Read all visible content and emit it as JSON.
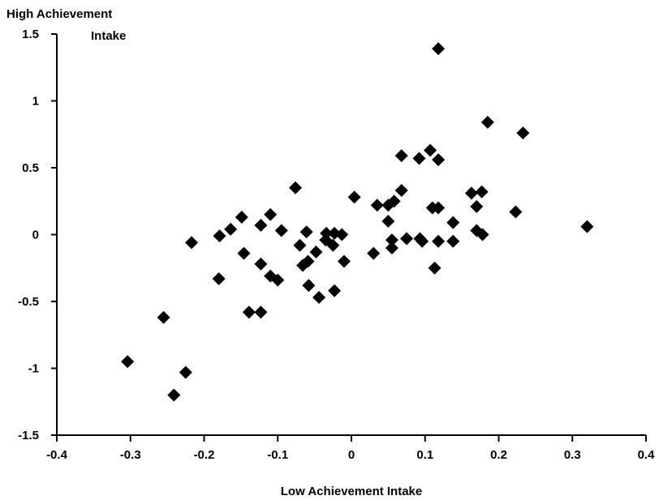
{
  "chart_data": {
    "type": "scatter",
    "ylabel_lines": [
      "High Achievement",
      "Intake"
    ],
    "xlabel": "Low Achievement Intake",
    "xlim": [
      -0.4,
      0.4
    ],
    "ylim": [
      -1.5,
      1.5
    ],
    "x_ticks": [
      -0.4,
      -0.3,
      -0.2,
      -0.1,
      0,
      0.1,
      0.2,
      0.3,
      0.4
    ],
    "x_tick_labels": [
      "-0.4",
      "-0.3",
      "-0.2",
      "-0.1",
      "0",
      "0.1",
      "0.2",
      "0.3",
      "0.4"
    ],
    "y_ticks": [
      1.5,
      1,
      0.5,
      0,
      -0.5,
      -1,
      -1.5
    ],
    "y_tick_labels": [
      "1.5",
      "1",
      "0.5",
      "0",
      "-0.5",
      "-1",
      "-1.5"
    ],
    "grid": false,
    "marker": "diamond",
    "marker_color": "#000000",
    "points": [
      {
        "x": -0.304,
        "y": -0.95
      },
      {
        "x": -0.255,
        "y": -0.62
      },
      {
        "x": -0.241,
        "y": -1.2
      },
      {
        "x": -0.225,
        "y": -1.03
      },
      {
        "x": -0.217,
        "y": -0.06
      },
      {
        "x": -0.179,
        "y": -0.01
      },
      {
        "x": -0.18,
        "y": -0.33
      },
      {
        "x": -0.164,
        "y": 0.04
      },
      {
        "x": -0.149,
        "y": 0.13
      },
      {
        "x": -0.146,
        "y": -0.14
      },
      {
        "x": -0.139,
        "y": -0.58
      },
      {
        "x": -0.123,
        "y": 0.07
      },
      {
        "x": -0.123,
        "y": -0.22
      },
      {
        "x": -0.123,
        "y": -0.58
      },
      {
        "x": -0.11,
        "y": 0.15
      },
      {
        "x": -0.11,
        "y": -0.31
      },
      {
        "x": -0.1,
        "y": -0.34
      },
      {
        "x": -0.095,
        "y": 0.03
      },
      {
        "x": -0.076,
        "y": 0.35
      },
      {
        "x": -0.07,
        "y": -0.08
      },
      {
        "x": -0.066,
        "y": -0.23
      },
      {
        "x": -0.061,
        "y": 0.02
      },
      {
        "x": -0.059,
        "y": -0.2
      },
      {
        "x": -0.058,
        "y": -0.38
      },
      {
        "x": -0.048,
        "y": -0.13
      },
      {
        "x": -0.044,
        "y": -0.47
      },
      {
        "x": -0.035,
        "y": -0.04
      },
      {
        "x": -0.034,
        "y": 0.01
      },
      {
        "x": -0.025,
        "y": -0.08
      },
      {
        "x": -0.023,
        "y": 0.01
      },
      {
        "x": -0.023,
        "y": -0.42
      },
      {
        "x": -0.013,
        "y": 0.0
      },
      {
        "x": -0.01,
        "y": -0.2
      },
      {
        "x": 0.004,
        "y": 0.28
      },
      {
        "x": 0.03,
        "y": -0.14
      },
      {
        "x": 0.035,
        "y": 0.22
      },
      {
        "x": 0.05,
        "y": 0.1
      },
      {
        "x": 0.05,
        "y": 0.22
      },
      {
        "x": 0.055,
        "y": -0.04
      },
      {
        "x": 0.058,
        "y": 0.25
      },
      {
        "x": 0.055,
        "y": -0.1
      },
      {
        "x": 0.068,
        "y": 0.33
      },
      {
        "x": 0.068,
        "y": 0.59
      },
      {
        "x": 0.075,
        "y": -0.03
      },
      {
        "x": 0.092,
        "y": 0.57
      },
      {
        "x": 0.093,
        "y": -0.03
      },
      {
        "x": 0.096,
        "y": -0.05
      },
      {
        "x": 0.107,
        "y": 0.63
      },
      {
        "x": 0.11,
        "y": 0.2
      },
      {
        "x": 0.113,
        "y": -0.25
      },
      {
        "x": 0.118,
        "y": 0.56
      },
      {
        "x": 0.118,
        "y": 1.39
      },
      {
        "x": 0.118,
        "y": 0.2
      },
      {
        "x": 0.118,
        "y": -0.05
      },
      {
        "x": 0.138,
        "y": 0.09
      },
      {
        "x": 0.138,
        "y": -0.05
      },
      {
        "x": 0.163,
        "y": 0.31
      },
      {
        "x": 0.17,
        "y": 0.21
      },
      {
        "x": 0.17,
        "y": 0.03
      },
      {
        "x": 0.177,
        "y": 0.32
      },
      {
        "x": 0.178,
        "y": 0.0
      },
      {
        "x": 0.185,
        "y": 0.84
      },
      {
        "x": 0.223,
        "y": 0.17
      },
      {
        "x": 0.233,
        "y": 0.76
      },
      {
        "x": 0.32,
        "y": 0.06
      }
    ]
  }
}
